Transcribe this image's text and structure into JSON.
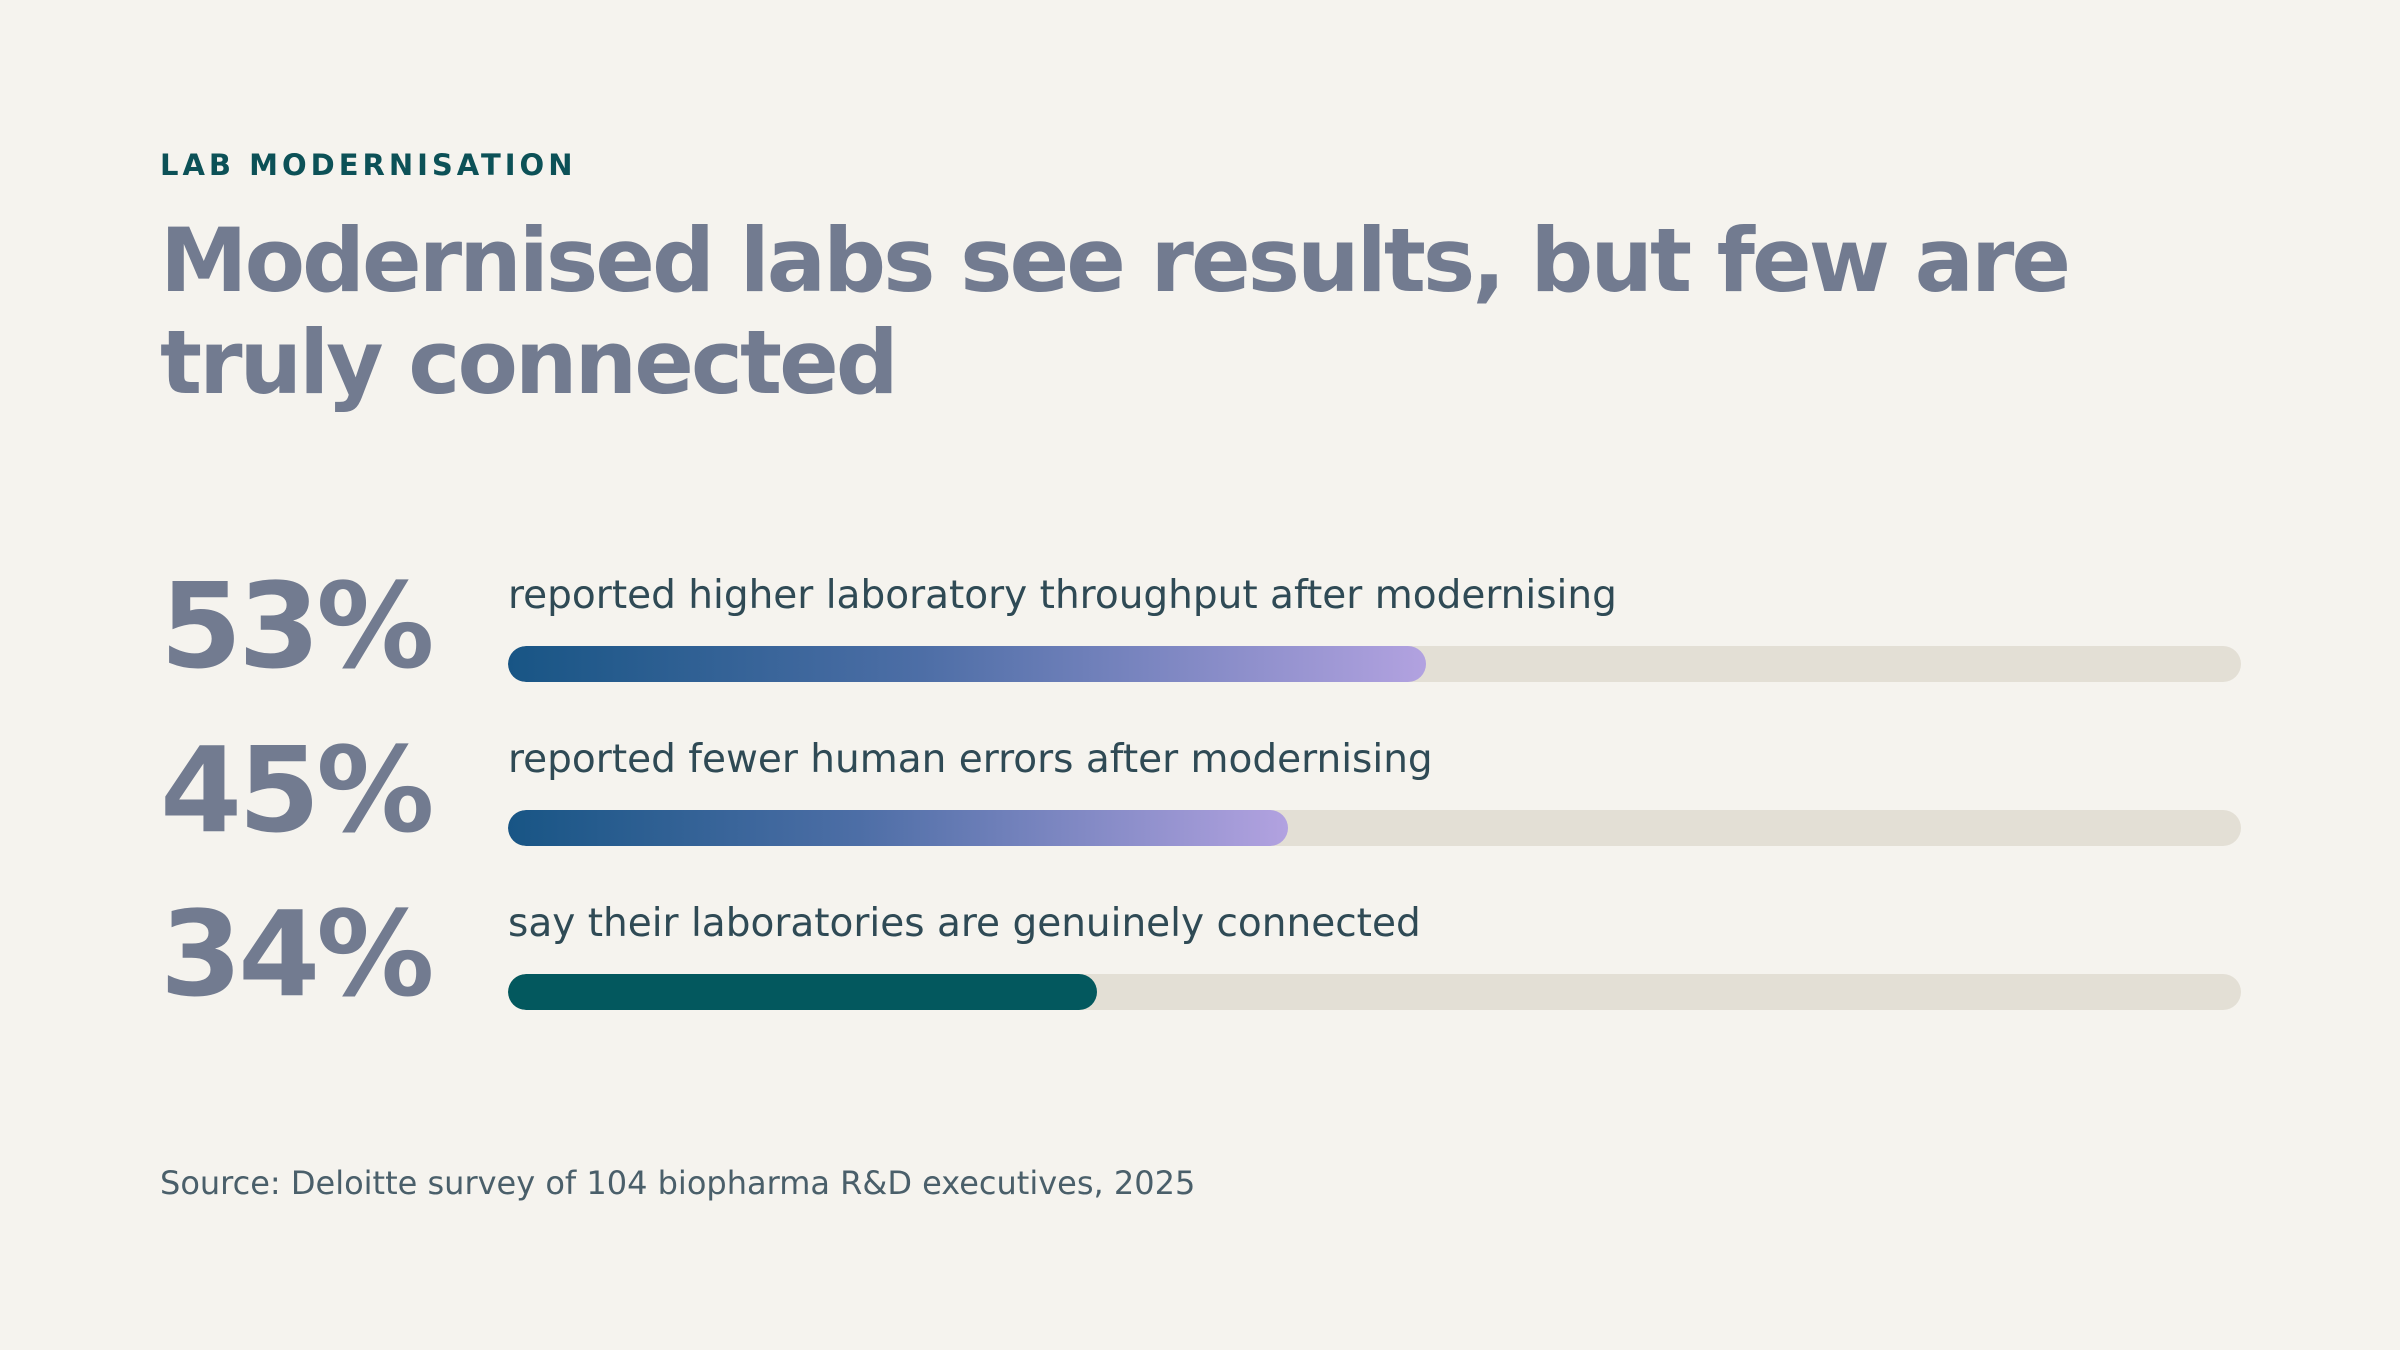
{
  "eyebrow": "LAB MODERNISATION",
  "title": "Modernised labs see results, but few are truly connected",
  "source": "Source: Deloitte survey of 104 biopharma R&D executives, 2025",
  "colors": {
    "background": "#f5f3ee",
    "accent": "#0c5157",
    "headline": "#727b90",
    "track": "#e3dfd5",
    "gradient_start": "#185585",
    "gradient_end": "#b2a2e0",
    "solid_fill": "#03585e"
  },
  "chart_data": {
    "type": "bar",
    "orientation": "horizontal",
    "scale": [
      0,
      100
    ],
    "items": [
      {
        "value_label": "53%",
        "value": 53,
        "label": "reported higher laboratory throughput after modernising",
        "style": "gradient"
      },
      {
        "value_label": "45%",
        "value": 45,
        "label": "reported fewer human errors after modernising",
        "style": "gradient"
      },
      {
        "value_label": "34%",
        "value": 34,
        "label": "say their laboratories are genuinely connected",
        "style": "solid"
      }
    ]
  }
}
